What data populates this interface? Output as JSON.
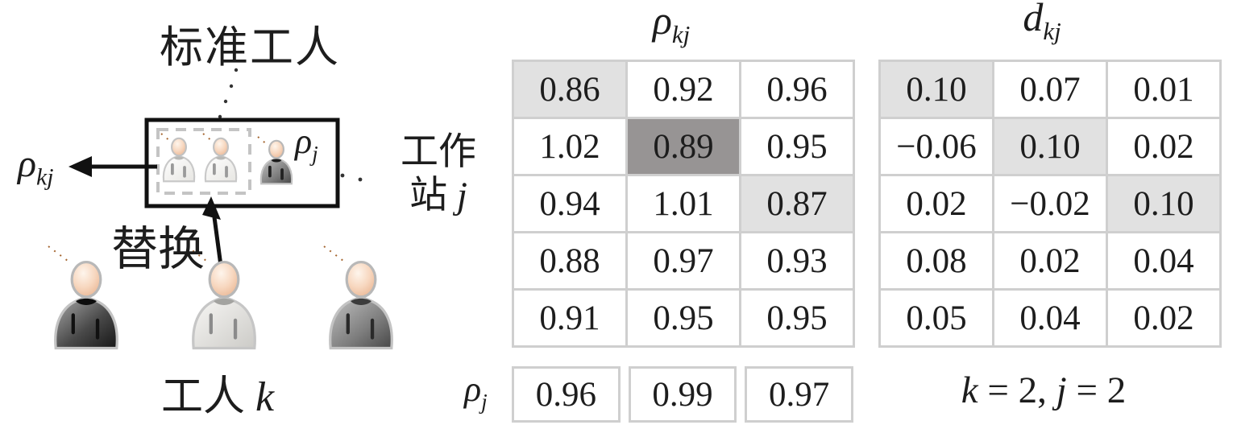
{
  "figure": {
    "left": {
      "title": "标准工人",
      "rho_kj": {
        "base": "ρ",
        "sub": "kj"
      },
      "rho_j_box": {
        "base": "ρ",
        "sub": "j"
      },
      "replace": "替换",
      "worker_k": {
        "text": "工人 ",
        "var": "k"
      }
    },
    "middle": {
      "header": {
        "base": "ρ",
        "sub": "kj"
      },
      "row_label": {
        "line1": "工作",
        "line2": "站 ",
        "var": "j"
      },
      "rows": [
        [
          "0.86",
          "0.92",
          "0.96"
        ],
        [
          "1.02",
          "0.89",
          "0.95"
        ],
        [
          "0.94",
          "1.01",
          "0.87"
        ],
        [
          "0.88",
          "0.97",
          "0.93"
        ],
        [
          "0.91",
          "0.95",
          "0.95"
        ]
      ],
      "highlight_light": [
        [
          0,
          0
        ],
        [
          2,
          2
        ]
      ],
      "highlight_dark": [
        [
          1,
          1
        ]
      ],
      "footer_label": {
        "base": "ρ",
        "sub": "j"
      },
      "footer_values": [
        "0.96",
        "0.99",
        "0.97"
      ]
    },
    "right": {
      "header": {
        "base": "d",
        "sub": "kj"
      },
      "rows": [
        [
          "0.10",
          "0.07",
          "0.01"
        ],
        [
          "−0.06",
          "0.10",
          "0.02"
        ],
        [
          "0.02",
          "−0.02",
          "0.10"
        ],
        [
          "0.08",
          "0.02",
          "0.04"
        ],
        [
          "0.05",
          "0.04",
          "0.02"
        ]
      ],
      "highlight_light": [
        [
          0,
          0
        ],
        [
          1,
          1
        ],
        [
          2,
          2
        ]
      ],
      "highlight_dark": [],
      "caption": {
        "v1": "k",
        "t1": " = 2, ",
        "v2": "j",
        "t2": " = 2"
      }
    },
    "colors": {
      "highlight_light": "#e1e1e1",
      "highlight_dark": "#979494",
      "grid": "#cfcfcf",
      "text": "#1d1d1d"
    }
  }
}
